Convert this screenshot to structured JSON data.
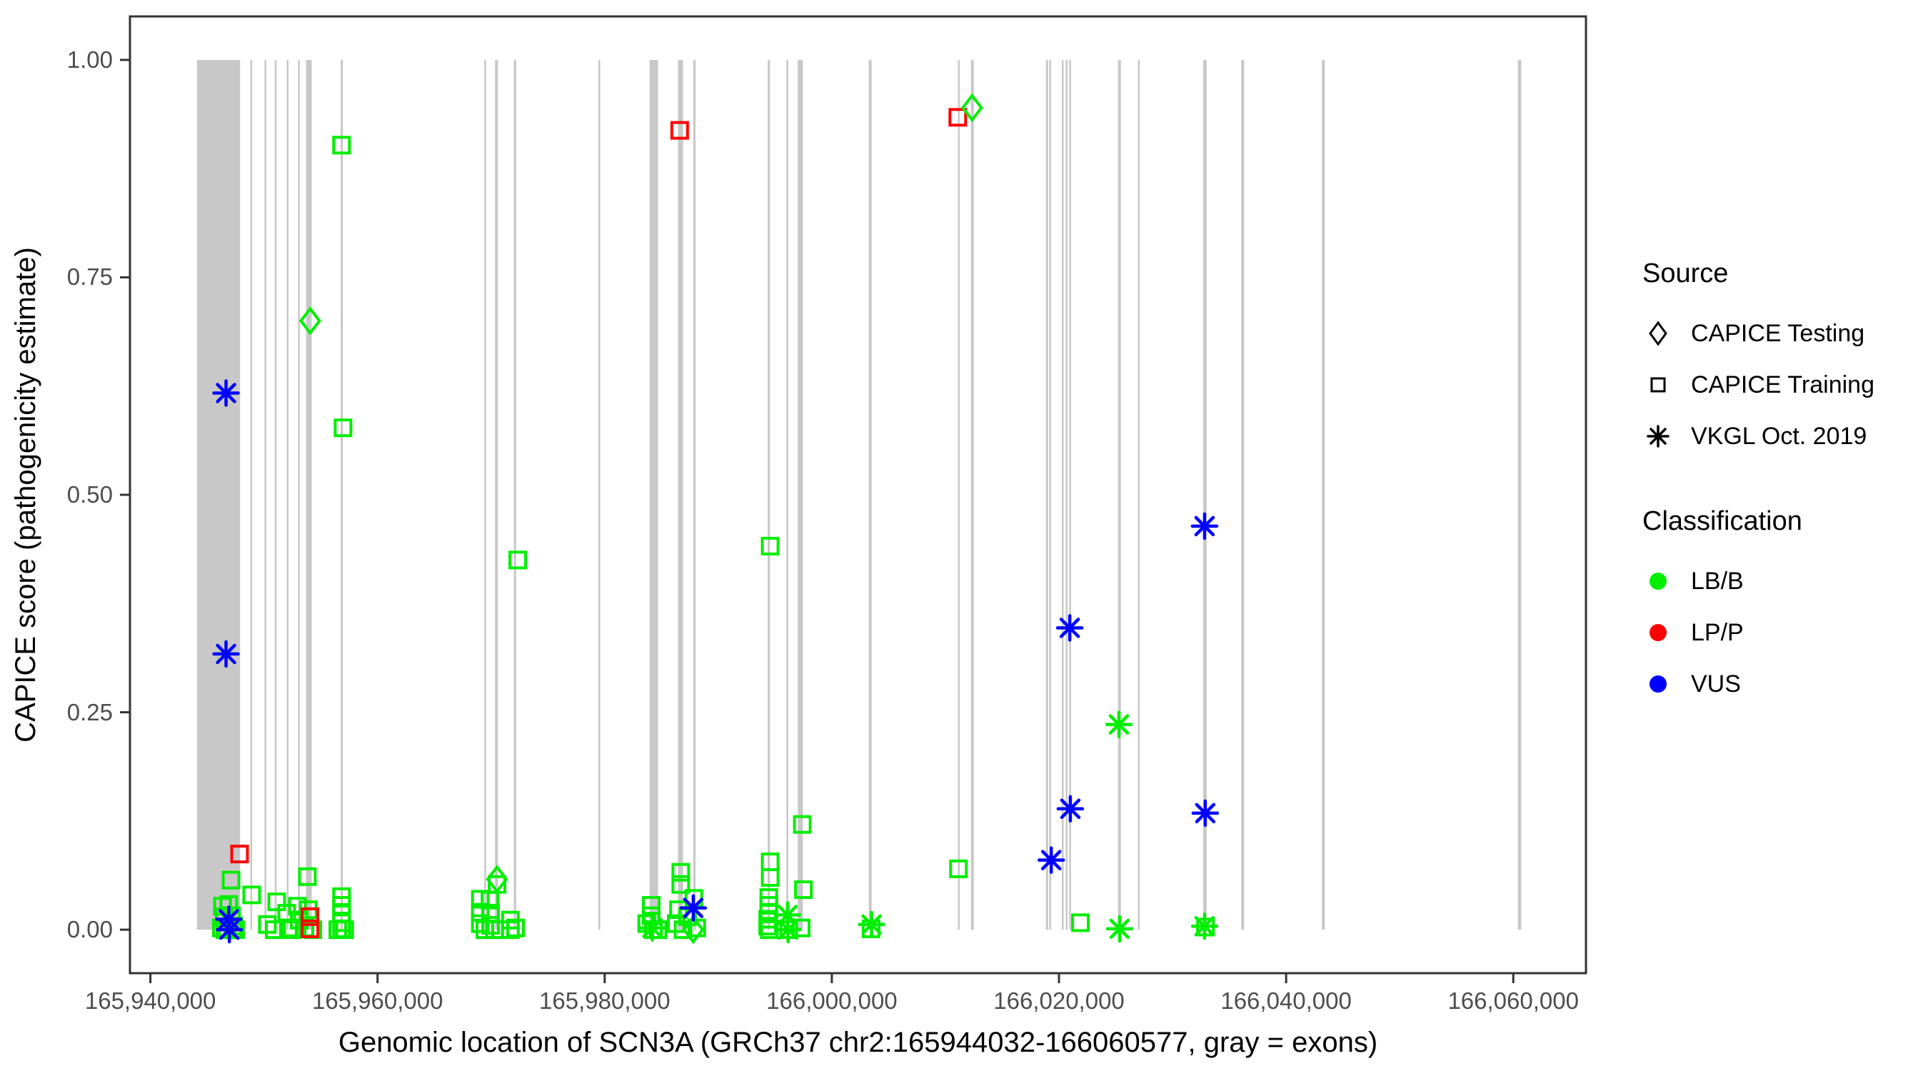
{
  "legend": {
    "source": {
      "title": "Source",
      "items": [
        {
          "label": "CAPICE Testing",
          "marker": "diamond"
        },
        {
          "label": "CAPICE Training",
          "marker": "square"
        },
        {
          "label": "VKGL Oct. 2019",
          "marker": "asterisk"
        }
      ]
    },
    "classification": {
      "title": "Classification",
      "items": [
        {
          "label": "LB/B",
          "color": "#00ee00"
        },
        {
          "label": "LP/P",
          "color": "#ff0000"
        },
        {
          "label": "VUS",
          "color": "#0000ff"
        }
      ]
    }
  },
  "chart_data": {
    "type": "scatter",
    "title": "",
    "xlabel": "Genomic location of SCN3A (GRCh37 chr2:165944032-166060577, gray = exons)",
    "ylabel": "CAPICE score (pathogenicity estimate)",
    "xlim": [
      165938200,
      166066400
    ],
    "ylim": [
      -0.05,
      1.05
    ],
    "grid": false,
    "legend_position": "right",
    "panel_border": true,
    "x_ticks": [
      {
        "value": 165940000,
        "label": "165,940,000"
      },
      {
        "value": 165960000,
        "label": "165,960,000"
      },
      {
        "value": 165980000,
        "label": "165,980,000"
      },
      {
        "value": 166000000,
        "label": "166,000,000"
      },
      {
        "value": 166020000,
        "label": "166,020,000"
      },
      {
        "value": 166040000,
        "label": "166,040,000"
      },
      {
        "value": 166060000,
        "label": "166,060,000"
      }
    ],
    "y_ticks": [
      {
        "value": 0.0,
        "label": "0.00"
      },
      {
        "value": 0.25,
        "label": "0.25"
      },
      {
        "value": 0.5,
        "label": "0.50"
      },
      {
        "value": 0.75,
        "label": "0.75"
      },
      {
        "value": 1.0,
        "label": "1.00"
      }
    ],
    "exon_color": "#c8c8c8",
    "exon_y_range": [
      0,
      1
    ],
    "exons": [
      [
        165944100,
        165947900
      ],
      [
        165948800,
        165948950
      ],
      [
        165950050,
        165950200
      ],
      [
        165950950,
        165951100
      ],
      [
        165952000,
        165952150
      ],
      [
        165953000,
        165953150
      ],
      [
        165953700,
        165954200
      ],
      [
        165956750,
        165956950
      ],
      [
        165969400,
        165969550
      ],
      [
        165970350,
        165970600
      ],
      [
        165972000,
        165972200
      ],
      [
        165979450,
        165979600
      ],
      [
        165983950,
        165984700
      ],
      [
        165986450,
        165986900
      ],
      [
        165987800,
        165988000
      ],
      [
        165994350,
        165994550
      ],
      [
        165996000,
        165996150
      ],
      [
        165997000,
        165997450
      ],
      [
        166003250,
        166003500
      ],
      [
        166011100,
        166011250
      ],
      [
        166012250,
        166012500
      ],
      [
        166018850,
        166019050
      ],
      [
        166019150,
        166019300
      ],
      [
        166020250,
        166020400
      ],
      [
        166020600,
        166020750
      ],
      [
        166020900,
        166021050
      ],
      [
        166025200,
        166025450
      ],
      [
        166026950,
        166027100
      ],
      [
        166032700,
        166033000
      ],
      [
        166036050,
        166036300
      ],
      [
        166043150,
        166043400
      ],
      [
        166060400,
        166060700
      ]
    ],
    "series": [
      {
        "name": "CAPICE Training / LB/B",
        "source": "CAPICE Training",
        "classification": "LB/B",
        "marker": "square",
        "color": "#00ee00",
        "points": [
          [
            165946350,
            0.027
          ],
          [
            165946900,
            0.029
          ],
          [
            165946500,
            0.015
          ],
          [
            165947150,
            0.016
          ],
          [
            165946250,
            0.002
          ],
          [
            165946750,
            0.001
          ],
          [
            165947350,
            0.004
          ],
          [
            165946550,
            0.0
          ],
          [
            165947250,
            0.0
          ],
          [
            165947500,
            0.0
          ],
          [
            165947100,
            0.057
          ],
          [
            165948920,
            0.04
          ],
          [
            165956830,
            0.902
          ],
          [
            165956960,
            0.577
          ],
          [
            165953820,
            0.061
          ],
          [
            165951120,
            0.032
          ],
          [
            165950300,
            0.006
          ],
          [
            165950900,
            0.0
          ],
          [
            165952000,
            0.019
          ],
          [
            165952150,
            0.002
          ],
          [
            165952500,
            0.0
          ],
          [
            165952950,
            0.027
          ],
          [
            165953100,
            0.011
          ],
          [
            165953600,
            0.002
          ],
          [
            165954300,
            0.0
          ],
          [
            165953900,
            0.023
          ],
          [
            165956830,
            0.038
          ],
          [
            165956830,
            0.028
          ],
          [
            165956830,
            0.018
          ],
          [
            165956830,
            0.008
          ],
          [
            165956830,
            0.001
          ],
          [
            165956500,
            0.0
          ],
          [
            165957100,
            0.0
          ],
          [
            165970520,
            0.052
          ],
          [
            165969050,
            0.035
          ],
          [
            165969900,
            0.034
          ],
          [
            165969050,
            0.02
          ],
          [
            165969950,
            0.019
          ],
          [
            165969050,
            0.007
          ],
          [
            165969950,
            0.005
          ],
          [
            165969450,
            0.0
          ],
          [
            165970300,
            0.0
          ],
          [
            165971700,
            0.011
          ],
          [
            165971700,
            0.0
          ],
          [
            165972150,
            0.002
          ],
          [
            165972340,
            0.425
          ],
          [
            165984100,
            0.028
          ],
          [
            165984100,
            0.016
          ],
          [
            165983700,
            0.007
          ],
          [
            165984300,
            0.0
          ],
          [
            165984700,
            0.0
          ],
          [
            165986700,
            0.066
          ],
          [
            165986700,
            0.052
          ],
          [
            165987850,
            0.036
          ],
          [
            165986500,
            0.023
          ],
          [
            165987300,
            0.015
          ],
          [
            165986300,
            0.007
          ],
          [
            165986900,
            0.0
          ],
          [
            165988100,
            0.002
          ],
          [
            165994570,
            0.441
          ],
          [
            165997400,
            0.121
          ],
          [
            165994570,
            0.078
          ],
          [
            165994570,
            0.06
          ],
          [
            165997500,
            0.046
          ],
          [
            165994450,
            0.037
          ],
          [
            165994450,
            0.028
          ],
          [
            165994450,
            0.02
          ],
          [
            165994350,
            0.012
          ],
          [
            165994350,
            0.004
          ],
          [
            165994500,
            0.0
          ],
          [
            165996200,
            0.0
          ],
          [
            165997300,
            0.002
          ],
          [
            166003450,
            0.001
          ],
          [
            166011150,
            0.07
          ],
          [
            166021890,
            0.008
          ],
          [
            166032900,
            0.003
          ]
        ]
      },
      {
        "name": "CAPICE Training / LP/P",
        "source": "CAPICE Training",
        "classification": "LP/P",
        "marker": "square",
        "color": "#ff0000",
        "points": [
          [
            165947850,
            0.087
          ],
          [
            165954050,
            0.015
          ],
          [
            165954050,
            0.001
          ],
          [
            165986600,
            0.919
          ],
          [
            166011090,
            0.934
          ]
        ]
      },
      {
        "name": "CAPICE Testing / LB/B",
        "source": "CAPICE Testing",
        "classification": "LB/B",
        "marker": "diamond",
        "color": "#00ee00",
        "points": [
          [
            165954070,
            0.7
          ],
          [
            165970520,
            0.058
          ],
          [
            165987800,
            0.0
          ],
          [
            166012350,
            0.945
          ]
        ]
      },
      {
        "name": "VKGL Oct. 2019 / LB/B",
        "source": "VKGL Oct. 2019",
        "classification": "LB/B",
        "marker": "asterisk",
        "color": "#00ee00",
        "points": [
          [
            165984200,
            0.002
          ],
          [
            165996100,
            0.017
          ],
          [
            165996150,
            0.0
          ],
          [
            166003500,
            0.006
          ],
          [
            166025280,
            0.236
          ],
          [
            166025340,
            0.001
          ],
          [
            166032820,
            0.004
          ]
        ]
      },
      {
        "name": "VKGL Oct. 2019 / VUS",
        "source": "VKGL Oct. 2019",
        "classification": "VUS",
        "marker": "asterisk",
        "color": "#0000ff",
        "points": [
          [
            165946660,
            0.617
          ],
          [
            165946660,
            0.317
          ],
          [
            165946900,
            0.012
          ],
          [
            165946950,
            0.0
          ],
          [
            165987800,
            0.025
          ],
          [
            166019320,
            0.08
          ],
          [
            166020950,
            0.347
          ],
          [
            166021000,
            0.139
          ],
          [
            166032820,
            0.464
          ],
          [
            166032880,
            0.134
          ]
        ]
      }
    ]
  }
}
